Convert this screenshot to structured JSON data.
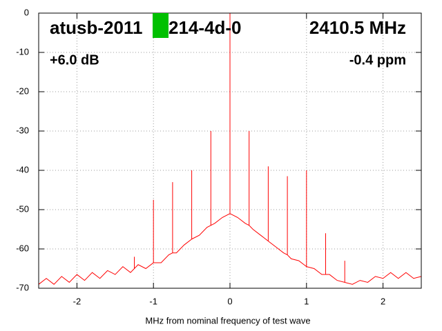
{
  "chart_data": {
    "type": "line",
    "annotations": [
      "atusb-2011",
      "214-4d-0",
      "2410.5 MHz",
      "+6.0 dB",
      "-0.4 ppm"
    ],
    "xlabel": "MHz from nominal frequency of test wave",
    "xlim": [
      -2.5,
      2.5
    ],
    "xticks": [
      -2,
      -1,
      0,
      1,
      2
    ],
    "ylim": [
      -70,
      0
    ],
    "yticks": [
      0,
      -10,
      -20,
      -30,
      -40,
      -50,
      -60,
      -70
    ],
    "grid": true,
    "x": [
      -2.5,
      -2.4,
      -2.3,
      -2.2,
      -2.1,
      -2.0,
      -1.9,
      -1.8,
      -1.7,
      -1.6,
      -1.5,
      -1.4,
      -1.3,
      -1.25,
      -1.25,
      -1.25,
      -1.2,
      -1.1,
      -1.0,
      -1.0,
      -1.0,
      -0.9,
      -0.8,
      -0.75,
      -0.75,
      -0.75,
      -0.7,
      -0.6,
      -0.5,
      -0.5,
      -0.5,
      -0.4,
      -0.3,
      -0.25,
      -0.25,
      -0.25,
      -0.2,
      -0.1,
      0,
      0,
      0,
      0.1,
      0.2,
      0.25,
      0.25,
      0.25,
      0.3,
      0.4,
      0.5,
      0.5,
      0.5,
      0.6,
      0.7,
      0.75,
      0.75,
      0.75,
      0.8,
      0.9,
      1.0,
      1.0,
      1.0,
      1.1,
      1.2,
      1.25,
      1.25,
      1.25,
      1.3,
      1.4,
      1.5,
      1.5,
      1.5,
      1.6,
      1.7,
      1.8,
      1.9,
      2.0,
      2.1,
      2.2,
      2.3,
      2.4,
      2.5
    ],
    "series": [
      {
        "color": "#ff0000",
        "values": [
          -69,
          -67.5,
          -69,
          -67,
          -68.5,
          -66.5,
          -68,
          -66,
          -67.5,
          -65.5,
          -66.5,
          -64.5,
          -66,
          -65,
          -62,
          -65,
          -64,
          -65,
          -63.5,
          -47.5,
          -63.5,
          -63.5,
          -61.5,
          -61,
          -43,
          -61,
          -61,
          -59,
          -57.5,
          -40,
          -57.5,
          -56.5,
          -54.5,
          -54,
          -30,
          -54,
          -53.5,
          -52,
          -51,
          0,
          -51,
          -52,
          -53.5,
          -54,
          -30,
          -54,
          -55,
          -56.5,
          -58,
          -39,
          -58,
          -59.5,
          -61,
          -61.5,
          -41.5,
          -61.5,
          -62.5,
          -63,
          -64.5,
          -40,
          -64.5,
          -65,
          -66.5,
          -66.5,
          -56,
          -66.5,
          -66.5,
          -68,
          -68.5,
          -63,
          -68.5,
          -69,
          -68,
          -68.5,
          -67,
          -67.5,
          -66,
          -67.5,
          -66,
          -67.5,
          -67
        ]
      }
    ]
  }
}
